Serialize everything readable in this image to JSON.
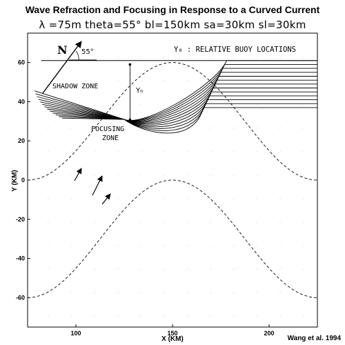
{
  "title": "Wave Refraction and Focusing in Response to a Curved Current",
  "subtitle": "λ =75m  theta=55°  bl=150km  sa=30km  sl=30km",
  "credit": "Wang et al. 1994",
  "annotations": {
    "north": "N",
    "angle": "55°",
    "buoy_legend": "Y₀ : RELATIVE BUOY LOCATIONS",
    "y0_marker": "Y₀",
    "shadow_zone": "SHADOW ZONE",
    "focusing_zone_1": "FOCUSING",
    "focusing_zone_2": "ZONE"
  },
  "chart_data": {
    "type": "line",
    "xlabel": "X (KM)",
    "ylabel": "Y (KM)",
    "xlim": [
      75,
      225
    ],
    "ylim": [
      -75,
      75
    ],
    "xticks": [
      100,
      150,
      200
    ],
    "yticks": [
      -60,
      -40,
      -20,
      0,
      20,
      40,
      60
    ],
    "current_axes": [
      {
        "name": "",
        "amplitude": 30,
        "offset": 30,
        "center": 150,
        "wavelength": 150
      },
      {
        "name": "",
        "amplitude": 30,
        "offset": -30,
        "center": 150,
        "wavelength": 150
      }
    ],
    "wave_ray_offsets": [
      61,
      59,
      57,
      55,
      53,
      51,
      49,
      47,
      45,
      43,
      41,
      39,
      37
    ],
    "focus_point": [
      125,
      31
    ],
    "buoy_line": {
      "x": 128,
      "y_from": 31,
      "y_to": 59
    }
  }
}
